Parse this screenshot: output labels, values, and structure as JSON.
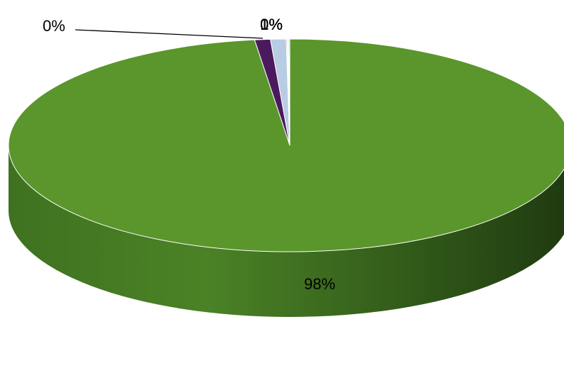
{
  "chart_data": {
    "type": "pie",
    "style": "3d",
    "legend": "none",
    "slices": [
      {
        "value": 98,
        "label": "98%",
        "color": "#5a962c"
      },
      {
        "value": 0.9,
        "label": "1%",
        "color": "#4b1a5e"
      },
      {
        "value": 0.9,
        "label": "1%",
        "color": "#b8cce4"
      },
      {
        "value": 0.05,
        "label": "0%",
        "color": "#c0504d"
      },
      {
        "value": 0.05,
        "label": "0%",
        "color": "#f79646"
      },
      {
        "value": 0.05,
        "label": "0%",
        "color": "#4bacc6"
      },
      {
        "value": 0.05,
        "label": "0%",
        "color": "#8064a2"
      }
    ],
    "leader_label": "0%"
  }
}
